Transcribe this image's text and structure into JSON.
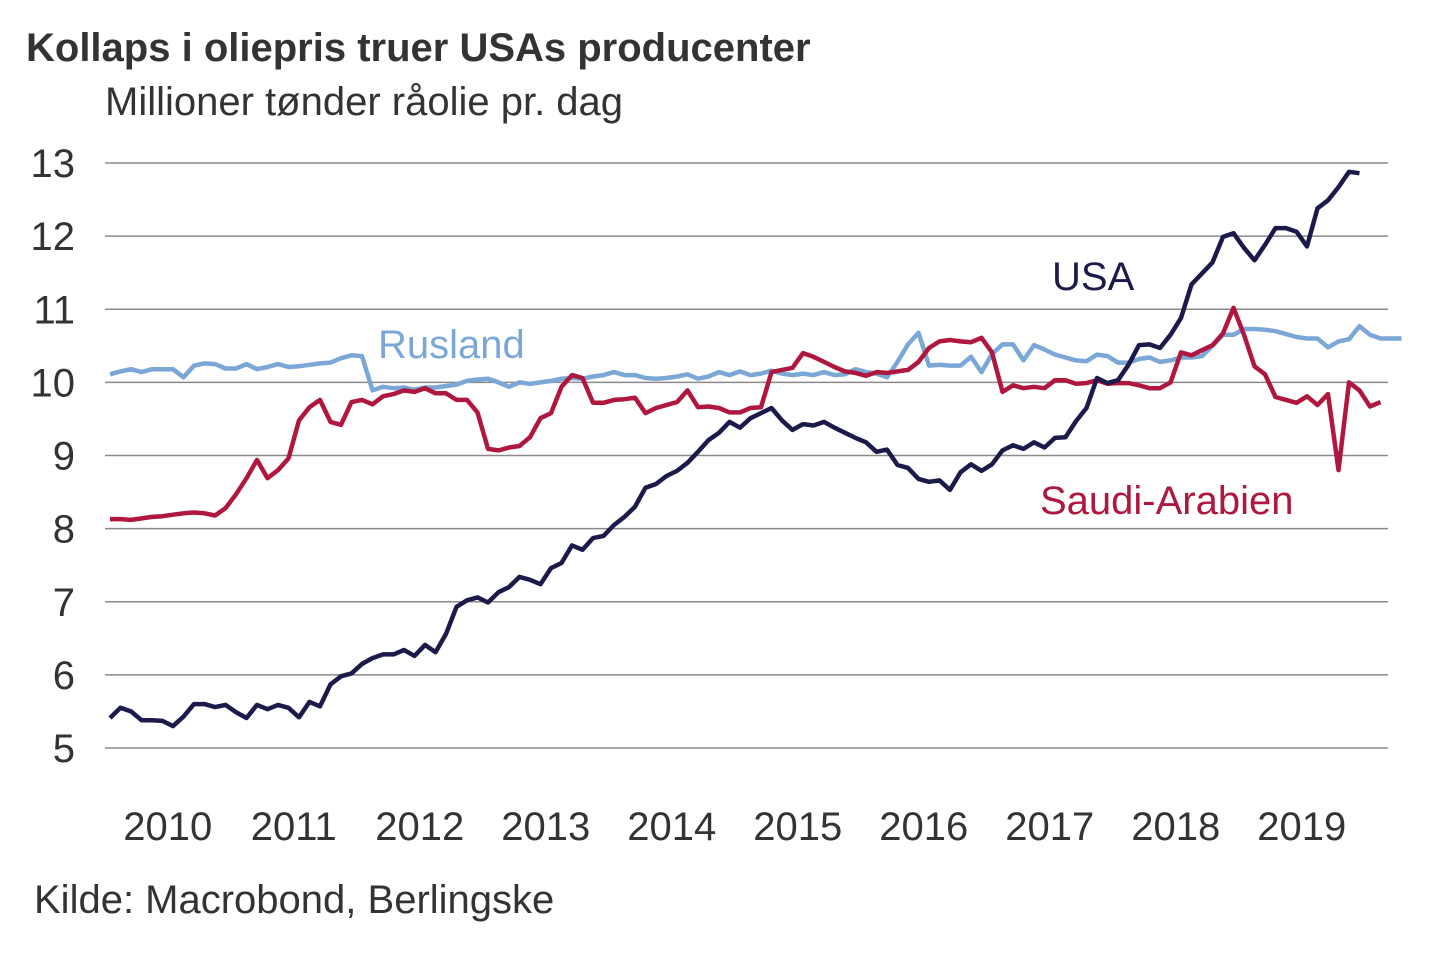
{
  "chart_data": {
    "type": "line",
    "title": "Kollaps i oliepris truer USAs producenter",
    "subtitle": "Millioner tønder råolie pr. dag",
    "source": "Kilde: Macrobond, Berlingske",
    "frequency": "monthly",
    "x_start": "2010-01",
    "ylim": [
      5,
      13
    ],
    "yticks": [
      "5",
      "6",
      "7",
      "8",
      "9",
      "10",
      "11",
      "12",
      "13"
    ],
    "xticks": [
      "2010",
      "2011",
      "2012",
      "2013",
      "2014",
      "2015",
      "2016",
      "2017",
      "2018",
      "2019"
    ],
    "grid": "horizontal",
    "series": [
      {
        "name": "USA",
        "color": "#1c1a4a",
        "values": [
          5.41,
          5.55,
          5.5,
          5.38,
          5.38,
          5.37,
          5.3,
          5.43,
          5.6,
          5.6,
          5.56,
          5.59,
          5.49,
          5.41,
          5.59,
          5.53,
          5.59,
          5.55,
          5.42,
          5.63,
          5.57,
          5.87,
          5.98,
          6.02,
          6.15,
          6.23,
          6.28,
          6.28,
          6.34,
          6.26,
          6.41,
          6.31,
          6.56,
          6.93,
          7.02,
          7.06,
          6.99,
          7.13,
          7.2,
          7.34,
          7.3,
          7.24,
          7.46,
          7.53,
          7.77,
          7.71,
          7.87,
          7.9,
          8.05,
          8.16,
          8.3,
          8.56,
          8.61,
          8.72,
          8.79,
          8.9,
          9.05,
          9.21,
          9.31,
          9.46,
          9.38,
          9.51,
          9.58,
          9.65,
          9.48,
          9.35,
          9.43,
          9.41,
          9.46,
          9.38,
          9.31,
          9.24,
          9.18,
          9.05,
          9.08,
          8.87,
          8.83,
          8.68,
          8.64,
          8.66,
          8.53,
          8.77,
          8.88,
          8.79,
          8.88,
          9.07,
          9.14,
          9.09,
          9.18,
          9.11,
          9.24,
          9.25,
          9.47,
          9.65,
          10.06,
          9.99,
          10.03,
          10.24,
          10.51,
          10.52,
          10.47,
          10.65,
          10.88,
          11.34,
          11.49,
          11.64,
          11.99,
          12.04,
          11.84,
          11.67,
          11.88,
          12.11,
          12.11,
          12.06,
          11.86,
          12.38,
          12.49,
          12.67,
          12.88,
          12.86
        ]
      },
      {
        "name": "Saudi-Arabien",
        "color": "#b0173f",
        "values": [
          8.13,
          8.13,
          8.12,
          8.14,
          8.16,
          8.17,
          8.19,
          8.21,
          8.22,
          8.21,
          8.18,
          8.28,
          8.47,
          8.69,
          8.94,
          8.69,
          8.8,
          8.96,
          9.48,
          9.66,
          9.76,
          9.46,
          9.42,
          9.73,
          9.76,
          9.7,
          9.81,
          9.84,
          9.89,
          9.87,
          9.92,
          9.85,
          9.85,
          9.76,
          9.76,
          9.59,
          9.09,
          9.07,
          9.11,
          9.13,
          9.25,
          9.51,
          9.58,
          9.94,
          10.1,
          10.06,
          9.72,
          9.72,
          9.76,
          9.77,
          9.79,
          9.58,
          9.65,
          9.69,
          9.73,
          9.89,
          9.66,
          9.67,
          9.65,
          9.59,
          9.59,
          9.65,
          9.66,
          10.14,
          10.17,
          10.2,
          10.4,
          10.35,
          10.28,
          10.21,
          10.15,
          10.13,
          10.09,
          10.14,
          10.13,
          10.15,
          10.17,
          10.28,
          10.47,
          10.56,
          10.58,
          10.56,
          10.55,
          10.61,
          10.41,
          9.87,
          9.96,
          9.92,
          9.94,
          9.92,
          10.03,
          10.03,
          9.98,
          9.99,
          10.03,
          9.98,
          9.99,
          9.99,
          9.96,
          9.92,
          9.92,
          10.0,
          10.41,
          10.37,
          10.44,
          10.51,
          10.67,
          11.02,
          10.65,
          10.22,
          10.11,
          9.8,
          9.76,
          9.72,
          9.81,
          9.69,
          9.84,
          8.8,
          10.0,
          9.89,
          9.67,
          9.73
        ]
      },
      {
        "name": "Rusland",
        "color": "#7ba7d7",
        "values": [
          10.11,
          10.15,
          10.18,
          10.14,
          10.18,
          10.18,
          10.18,
          10.07,
          10.23,
          10.26,
          10.25,
          10.19,
          10.19,
          10.25,
          10.18,
          10.21,
          10.25,
          10.21,
          10.22,
          10.24,
          10.26,
          10.27,
          10.33,
          10.37,
          10.36,
          9.89,
          9.94,
          9.92,
          9.93,
          9.9,
          9.93,
          9.93,
          9.95,
          9.97,
          10.02,
          10.04,
          10.05,
          10.0,
          9.94,
          10.0,
          9.98,
          10.0,
          10.02,
          10.05,
          10.06,
          10.05,
          10.08,
          10.1,
          10.14,
          10.1,
          10.1,
          10.06,
          10.05,
          10.06,
          10.08,
          10.11,
          10.05,
          10.08,
          10.14,
          10.1,
          10.15,
          10.1,
          10.12,
          10.16,
          10.12,
          10.1,
          10.12,
          10.1,
          10.14,
          10.1,
          10.11,
          10.18,
          10.14,
          10.12,
          10.07,
          10.28,
          10.52,
          10.68,
          10.23,
          10.24,
          10.23,
          10.23,
          10.35,
          10.14,
          10.39,
          10.52,
          10.52,
          10.3,
          10.51,
          10.45,
          10.38,
          10.34,
          10.3,
          10.29,
          10.38,
          10.36,
          10.27,
          10.27,
          10.32,
          10.34,
          10.28,
          10.3,
          10.34,
          10.34,
          10.36,
          10.5,
          10.65,
          10.65,
          10.73,
          10.73,
          10.72,
          10.7,
          10.66,
          10.62,
          10.6,
          10.6,
          10.48,
          10.56,
          10.59,
          10.77,
          10.65,
          10.6,
          10.6,
          10.6
        ]
      }
    ]
  }
}
